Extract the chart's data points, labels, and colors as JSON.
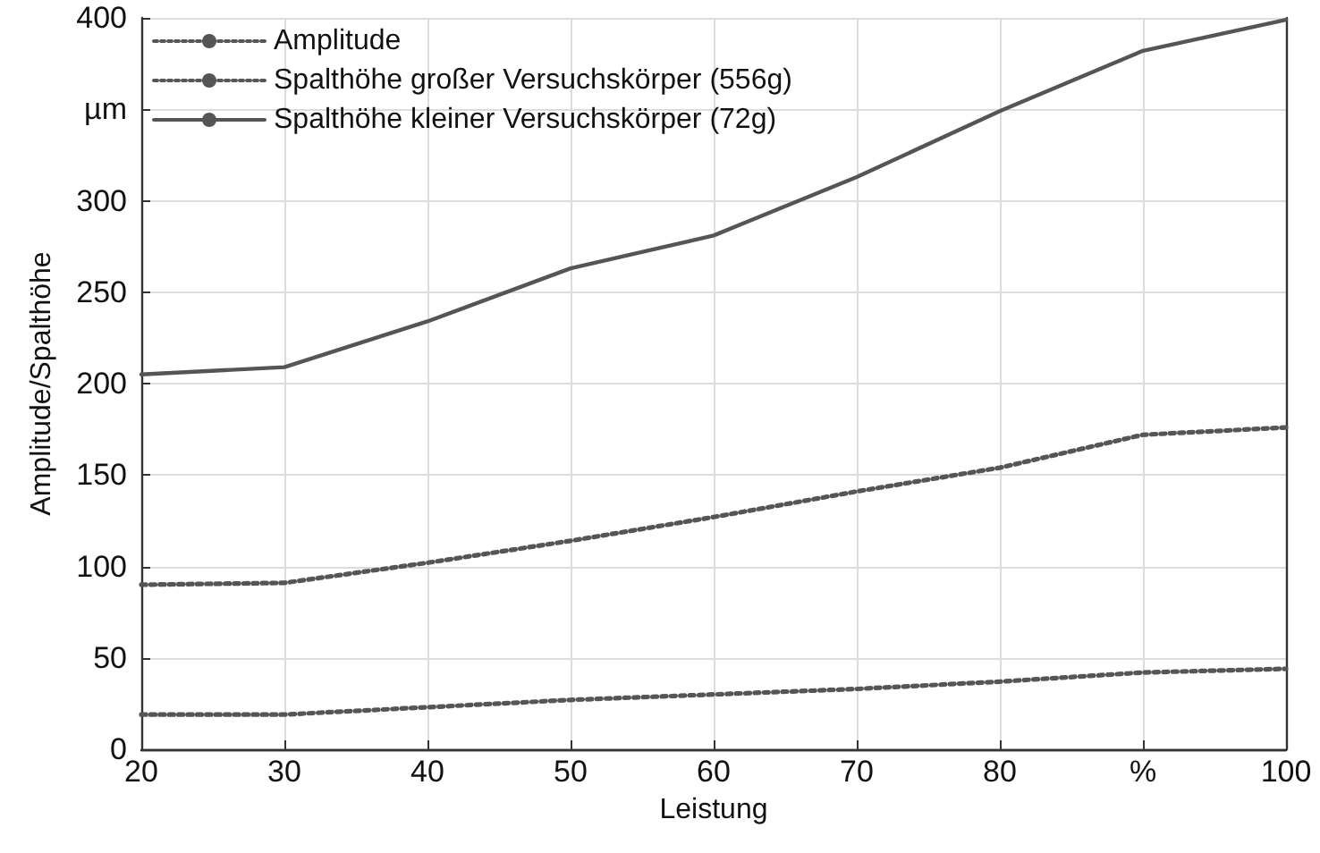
{
  "chart_data": {
    "type": "line",
    "xlabel": "Leistung",
    "ylabel": "Amplitude/Spalthöhe",
    "x": [
      20,
      30,
      40,
      50,
      60,
      70,
      80,
      90,
      100
    ],
    "series": [
      {
        "name": "Amplitude",
        "color": "#555555",
        "line_style": "dotted",
        "values": [
          19,
          19,
          23,
          27,
          30,
          33,
          37,
          42,
          44
        ]
      },
      {
        "name": "Spalthöhe großer Versuchskörper (556g)",
        "color": "#555555",
        "line_style": "dotted",
        "values": [
          90,
          91,
          102,
          114,
          127,
          141,
          154,
          172,
          176
        ]
      },
      {
        "name": "Spalthöhe kleiner Versuchskörper (72g)",
        "color": "#555555",
        "line_style": "solid",
        "values": [
          205,
          209,
          234,
          263,
          281,
          313,
          349,
          382,
          399
        ]
      }
    ],
    "xlim": [
      20,
      100
    ],
    "xticks": [
      20,
      30,
      40,
      50,
      60,
      70,
      80,
      {
        "value": 90,
        "label": "%"
      },
      100
    ],
    "ylim": [
      0,
      400
    ],
    "yticks": [
      0,
      50,
      100,
      150,
      200,
      250,
      300,
      {
        "value": 350,
        "label": "µm"
      },
      400
    ],
    "grid": true,
    "legend": "top left",
    "marker": "none"
  }
}
